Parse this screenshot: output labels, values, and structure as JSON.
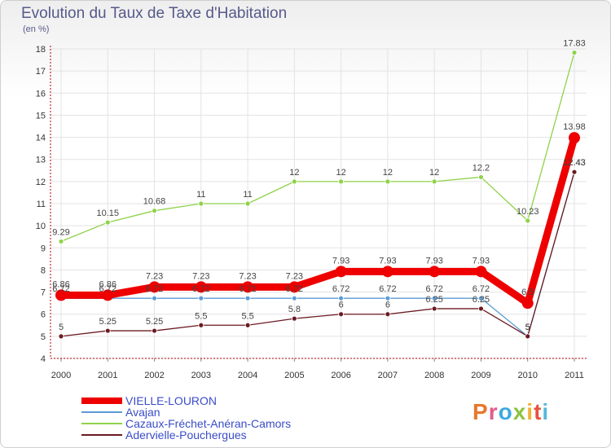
{
  "header": {
    "title": "Evolution du Taux de Taxe d'Habitation",
    "subtitle": "(en %)"
  },
  "logo": {
    "text": "Proxiti",
    "colors": [
      "#e8772e",
      "#e25b8a",
      "#3fa9e0",
      "#8cc43f",
      "#f2b134",
      "#e5533d",
      "#57b8d9"
    ]
  },
  "chart_data": {
    "type": "line",
    "title": "Evolution du Taux de Taxe d'Habitation",
    "ylabel": "(en %)",
    "xlabel": "",
    "categories": [
      "2000",
      "2001",
      "2002",
      "2003",
      "2004",
      "2005",
      "2006",
      "2007",
      "2008",
      "2009",
      "2010",
      "2011"
    ],
    "ylim": [
      4,
      18
    ],
    "yticks": [
      "4",
      "5",
      "6",
      "7",
      "8",
      "9",
      "10",
      "11",
      "12",
      "13",
      "14",
      "15",
      "16",
      "17",
      "18"
    ],
    "grid": true,
    "legend_position": "bottom-left",
    "series": [
      {
        "name": "VIELLE-LOURON",
        "color": "#ee0000",
        "thick": true,
        "values": [
          6.86,
          6.86,
          7.23,
          7.23,
          7.23,
          7.23,
          7.93,
          7.93,
          7.93,
          7.93,
          6.5,
          13.98
        ],
        "labels": [
          "6.86",
          "6.86",
          "7.23",
          "7.23",
          "7.23",
          "7.23",
          "7.93",
          "7.93",
          "7.93",
          "7.93",
          "6.5",
          "13.98"
        ]
      },
      {
        "name": "Avajan",
        "color": "#5b9bd5",
        "thick": false,
        "values": [
          6.72,
          6.72,
          6.72,
          6.72,
          6.72,
          6.72,
          6.72,
          6.72,
          6.72,
          6.72,
          5,
          12.43
        ],
        "labels": [
          "6.72",
          "6.72",
          "6.72",
          "6.72",
          "6.72",
          "6.72",
          "6.72",
          "6.72",
          "6.72",
          "6.72",
          "5",
          "12.43"
        ]
      },
      {
        "name": "Cazaux-Fréchet-Anéran-Camors",
        "color": "#8fd24a",
        "thick": false,
        "values": [
          9.29,
          10.15,
          10.68,
          11,
          11,
          12,
          12,
          12,
          12,
          12.2,
          10.23,
          17.83
        ],
        "labels": [
          "9.29",
          "10.15",
          "10.68",
          "11",
          "11",
          "12",
          "12",
          "12",
          "12",
          "12.2",
          "10.23",
          "17.83"
        ]
      },
      {
        "name": "Adervielle-Pouchergues",
        "color": "#6b1a22",
        "thick": false,
        "values": [
          5,
          5.25,
          5.25,
          5.5,
          5.5,
          5.8,
          6,
          6,
          6.25,
          6.25,
          5,
          12.43
        ],
        "labels": [
          "5",
          "5.25",
          "5.25",
          "5.5",
          "5.5",
          "5.8",
          "6",
          "6",
          "6.25",
          "6.25",
          "5",
          "12.43"
        ]
      }
    ]
  }
}
